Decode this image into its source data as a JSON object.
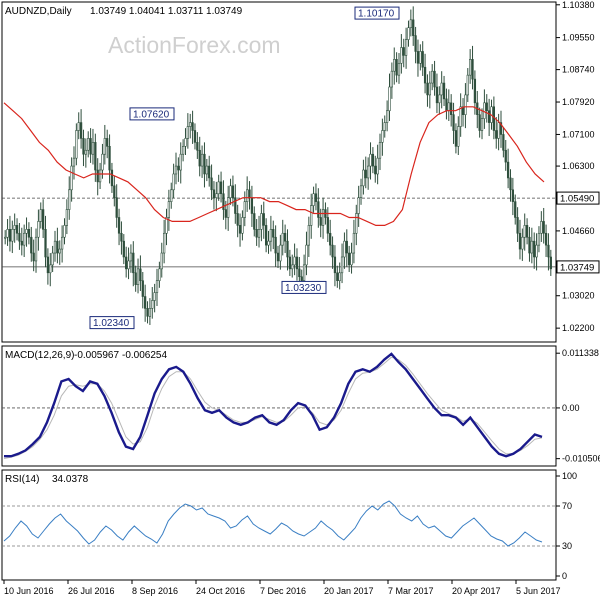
{
  "header": {
    "title": "AUDNZD,Daily",
    "ohlc": "1.03749 1.04041 1.03711 1.03749"
  },
  "watermark": "ActionForex.com",
  "chart_data": [
    {
      "type": "candlestick",
      "title": "AUDNZD,Daily",
      "ylim": [
        1.019,
        1.104
      ],
      "y_ticks": [
        "1.10380",
        "1.09550",
        "1.08740",
        "1.07920",
        "1.07100",
        "1.06300",
        "1.05490",
        "1.04660",
        "1.03749",
        "1.03020",
        "1.02200"
      ],
      "x_ticks": [
        "10 Jun 2016",
        "26 Jul 2016",
        "8 Sep 2016",
        "24 Oct 2016",
        "7 Dec 2016",
        "20 Jan 2017",
        "7 Mar 2017",
        "20 Apr 2017",
        "5 Jun 2017"
      ],
      "horizontal_lines": [
        {
          "value": 1.0549,
          "label": "1.05490",
          "style": "dashed"
        },
        {
          "value": 1.03749,
          "label": "1.03749",
          "style": "solid"
        }
      ],
      "annotations": [
        {
          "label": "1.07620",
          "value": 1.0762,
          "date": "Aug 2016"
        },
        {
          "label": "1.02340",
          "value": 1.0234,
          "date": "Sep 2016"
        },
        {
          "label": "1.03230",
          "value": 1.0323,
          "date": "Jan 2017"
        },
        {
          "label": "1.10170",
          "value": 1.1017,
          "date": "Mar 2017"
        }
      ],
      "close_series": [
        1.045,
        1.047,
        1.044,
        1.047,
        1.048,
        1.046,
        1.044,
        1.043,
        1.046,
        1.047,
        1.045,
        1.041,
        1.039,
        1.045,
        1.049,
        1.052,
        1.047,
        1.04,
        1.036,
        1.038,
        1.041,
        1.044,
        1.041,
        1.042,
        1.045,
        1.048,
        1.052,
        1.057,
        1.063,
        1.065,
        1.072,
        1.074,
        1.07,
        1.066,
        1.067,
        1.07,
        1.066,
        1.069,
        1.062,
        1.059,
        1.062,
        1.066,
        1.07,
        1.068,
        1.062,
        1.058,
        1.055,
        1.05,
        1.046,
        1.044,
        1.04,
        1.037,
        1.039,
        1.041,
        1.036,
        1.033,
        1.037,
        1.034,
        1.03,
        1.027,
        1.025,
        1.027,
        1.029,
        1.031,
        1.034,
        1.037,
        1.041,
        1.046,
        1.05,
        1.054,
        1.057,
        1.061,
        1.063,
        1.062,
        1.066,
        1.068,
        1.07,
        1.073,
        1.074,
        1.072,
        1.069,
        1.067,
        1.063,
        1.066,
        1.061,
        1.063,
        1.06,
        1.057,
        1.055,
        1.056,
        1.059,
        1.056,
        1.052,
        1.05,
        1.055,
        1.058,
        1.055,
        1.051,
        1.048,
        1.046,
        1.05,
        1.054,
        1.057,
        1.055,
        1.051,
        1.047,
        1.045,
        1.047,
        1.051,
        1.048,
        1.043,
        1.044,
        1.047,
        1.045,
        1.041,
        1.039,
        1.043,
        1.046,
        1.044,
        1.04,
        1.037,
        1.038,
        1.04,
        1.037,
        1.035,
        1.034,
        1.038,
        1.043,
        1.048,
        1.053,
        1.056,
        1.054,
        1.05,
        1.048,
        1.052,
        1.05,
        1.046,
        1.043,
        1.04,
        1.036,
        1.034,
        1.036,
        1.04,
        1.044,
        1.041,
        1.038,
        1.041,
        1.046,
        1.051,
        1.055,
        1.058,
        1.062,
        1.06,
        1.063,
        1.066,
        1.063,
        1.061,
        1.065,
        1.069,
        1.072,
        1.074,
        1.077,
        1.083,
        1.087,
        1.09,
        1.086,
        1.089,
        1.093,
        1.091,
        1.095,
        1.098,
        1.1,
        1.096,
        1.092,
        1.089,
        1.092,
        1.088,
        1.084,
        1.081,
        1.084,
        1.087,
        1.083,
        1.079,
        1.081,
        1.084,
        1.08,
        1.077,
        1.079,
        1.076,
        1.072,
        1.068,
        1.073,
        1.078,
        1.076,
        1.081,
        1.086,
        1.09,
        1.085,
        1.079,
        1.076,
        1.072,
        1.075,
        1.079,
        1.077,
        1.074,
        1.078,
        1.072,
        1.07,
        1.074,
        1.071,
        1.067,
        1.064,
        1.06,
        1.057,
        1.054,
        1.05,
        1.046,
        1.042,
        1.045,
        1.048,
        1.045,
        1.041,
        1.044,
        1.04,
        1.043,
        1.046,
        1.049,
        1.046,
        1.043,
        1.04,
        1.037
      ],
      "ma_series": [
        1.079,
        1.077,
        1.075,
        1.072,
        1.069,
        1.067,
        1.064,
        1.062,
        1.061,
        1.06,
        1.061,
        1.061,
        1.061,
        1.06,
        1.059,
        1.057,
        1.055,
        1.052,
        1.05,
        1.049,
        1.049,
        1.049,
        1.05,
        1.051,
        1.052,
        1.053,
        1.054,
        1.055,
        1.055,
        1.055,
        1.054,
        1.054,
        1.053,
        1.052,
        1.052,
        1.051,
        1.051,
        1.051,
        1.051,
        1.05,
        1.05,
        1.049,
        1.048,
        1.048,
        1.049,
        1.052,
        1.061,
        1.069,
        1.074,
        1.076,
        1.077,
        1.077,
        1.078,
        1.078,
        1.077,
        1.076,
        1.074,
        1.071,
        1.068,
        1.064,
        1.061,
        1.059
      ],
      "series": [
        {
          "name": "MACD(12,26,9)",
          "value": "-0.005967",
          "ylim": [
            -0.0112,
            0.012
          ],
          "y_ticks": [
            "0.011338",
            "0.00",
            "-0.010506"
          ],
          "values": [
            -0.01,
            -0.01,
            -0.0095,
            -0.0088,
            -0.0075,
            -0.006,
            -0.003,
            0.001,
            0.0055,
            0.006,
            0.0045,
            0.0035,
            0.0055,
            0.005,
            0.0025,
            -0.001,
            -0.005,
            -0.008,
            -0.0085,
            -0.006,
            -0.0015,
            0.003,
            0.006,
            0.008,
            0.0085,
            0.0075,
            0.005,
            0.002,
            -0.0005,
            -0.001,
            -0.0005,
            -0.002,
            -0.003,
            -0.0035,
            -0.003,
            -0.002,
            -0.0015,
            -0.003,
            -0.0035,
            -0.0025,
            -0.0005,
            0.001,
            0.0005,
            -0.0015,
            -0.0045,
            -0.004,
            -0.002,
            0.001,
            0.005,
            0.0075,
            0.008,
            0.0075,
            0.0085,
            0.01,
            0.0112,
            0.0095,
            0.008,
            0.006,
            0.004,
            0.002,
            0.0,
            -0.0015,
            -0.0015,
            -0.002,
            -0.0035,
            -0.002,
            -0.004,
            -0.006,
            -0.008,
            -0.0095,
            -0.01,
            -0.0095,
            -0.0085,
            -0.007,
            -0.0055,
            -0.006
          ],
          "signal": [
            -0.0105,
            -0.0102,
            -0.0098,
            -0.009,
            -0.008,
            -0.0065,
            -0.0045,
            -0.0015,
            0.0025,
            0.0045,
            0.0048,
            0.0045,
            0.005,
            0.005,
            0.0035,
            0.001,
            -0.0025,
            -0.006,
            -0.0075,
            -0.007,
            -0.004,
            0.0005,
            0.004,
            0.0065,
            0.0075,
            0.0075,
            0.006,
            0.0035,
            0.0012,
            0.0,
            -0.0005,
            -0.0015,
            -0.0025,
            -0.003,
            -0.003,
            -0.0024,
            -0.0018,
            -0.0024,
            -0.003,
            -0.0028,
            -0.0015,
            0.0,
            0.0002,
            -0.001,
            -0.003,
            -0.0035,
            -0.0025,
            -0.0005,
            0.003,
            0.006,
            0.0072,
            0.0074,
            0.008,
            0.0092,
            0.0105,
            0.01,
            0.0088,
            0.007,
            0.005,
            0.003,
            0.0012,
            -0.0005,
            -0.0012,
            -0.0018,
            -0.0028,
            -0.0022,
            -0.0032,
            -0.005,
            -0.0068,
            -0.0085,
            -0.0095,
            -0.0095,
            -0.0088,
            -0.0078,
            -0.0065,
            -0.0062
          ]
        },
        {
          "name": "RSI(14)",
          "value": "34.0378",
          "ylim": [
            0,
            100
          ],
          "y_ticks": [
            "100",
            "70",
            "30",
            "0"
          ],
          "levels": [
            70,
            30
          ],
          "values": [
            35,
            40,
            48,
            55,
            50,
            42,
            38,
            45,
            52,
            58,
            62,
            55,
            50,
            45,
            38,
            32,
            36,
            44,
            50,
            46,
            40,
            36,
            44,
            50,
            45,
            40,
            37,
            33,
            42,
            55,
            62,
            68,
            72,
            70,
            66,
            68,
            62,
            60,
            58,
            55,
            48,
            50,
            56,
            60,
            52,
            48,
            45,
            42,
            47,
            53,
            50,
            45,
            42,
            40,
            44,
            48,
            55,
            50,
            46,
            40,
            36,
            42,
            48,
            58,
            65,
            70,
            66,
            72,
            75,
            70,
            62,
            58,
            55,
            60,
            52,
            48,
            50,
            45,
            40,
            38,
            44,
            50,
            54,
            58,
            52,
            46,
            40,
            37,
            35,
            30,
            33,
            38,
            44,
            40,
            36,
            34
          ]
        }
      ]
    }
  ]
}
